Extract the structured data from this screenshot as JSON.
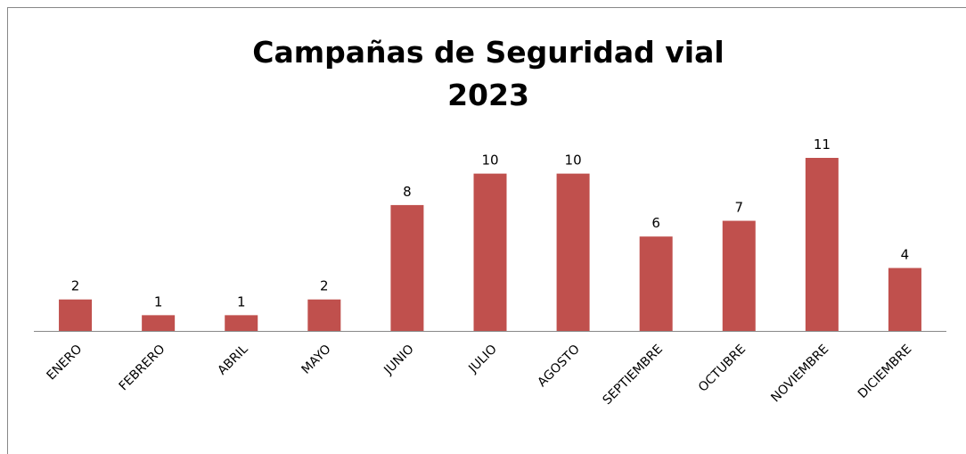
{
  "chart_data": {
    "type": "bar",
    "title": [
      "Campañas de Seguridad vial",
      "2023"
    ],
    "categories": [
      "ENERO",
      "FEBRERO",
      "ABRIL",
      "MAYO",
      "JUNIO",
      "JULIO",
      "AGOSTO",
      "SEPTIEMBRE",
      "OCTUBRE",
      "NOVIEMBRE",
      "DICIEMBRE"
    ],
    "values": [
      2,
      1,
      1,
      2,
      8,
      10,
      10,
      6,
      7,
      11,
      4
    ],
    "color": "#c0504d"
  }
}
